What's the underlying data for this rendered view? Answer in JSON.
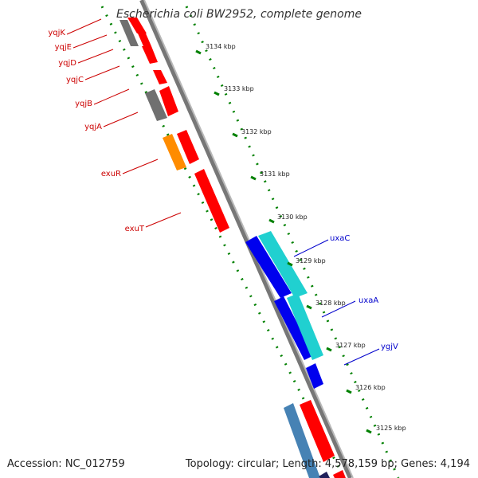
{
  "title": "Escherichia coli BW2952, complete genome",
  "footer": {
    "accession": "Accession: NC_012759",
    "summary": "Topology: circular; Length: 4,578,159 bp; Genes: 4,194"
  },
  "ruler": [
    "3134 kbp",
    "3133 kbp",
    "3132 kbp",
    "3131 kbp",
    "3130 kbp",
    "3129 kbp",
    "3128 kbp",
    "3127 kbp",
    "3126 kbp",
    "3125 kbp"
  ],
  "gene_labels": {
    "reverse": [
      "yqjK",
      "yqjE",
      "yqjD",
      "yqjC",
      "yqjB",
      "yqjA",
      "exuR",
      "exuT"
    ],
    "forward": [
      "uxaC",
      "uxaA",
      "ygjV"
    ]
  },
  "colors": {
    "cds_red": "#ff0000",
    "gene_gray": "#707070",
    "regulator_orange": "#ff8c00",
    "cds_blue": "#0000ee",
    "cyan": "#20d0d0",
    "steel_blue": "#4682b4",
    "label_red": "#cc0000",
    "label_blue": "#0000cc",
    "scale_green": "#008000",
    "backbone": "#888888"
  }
}
